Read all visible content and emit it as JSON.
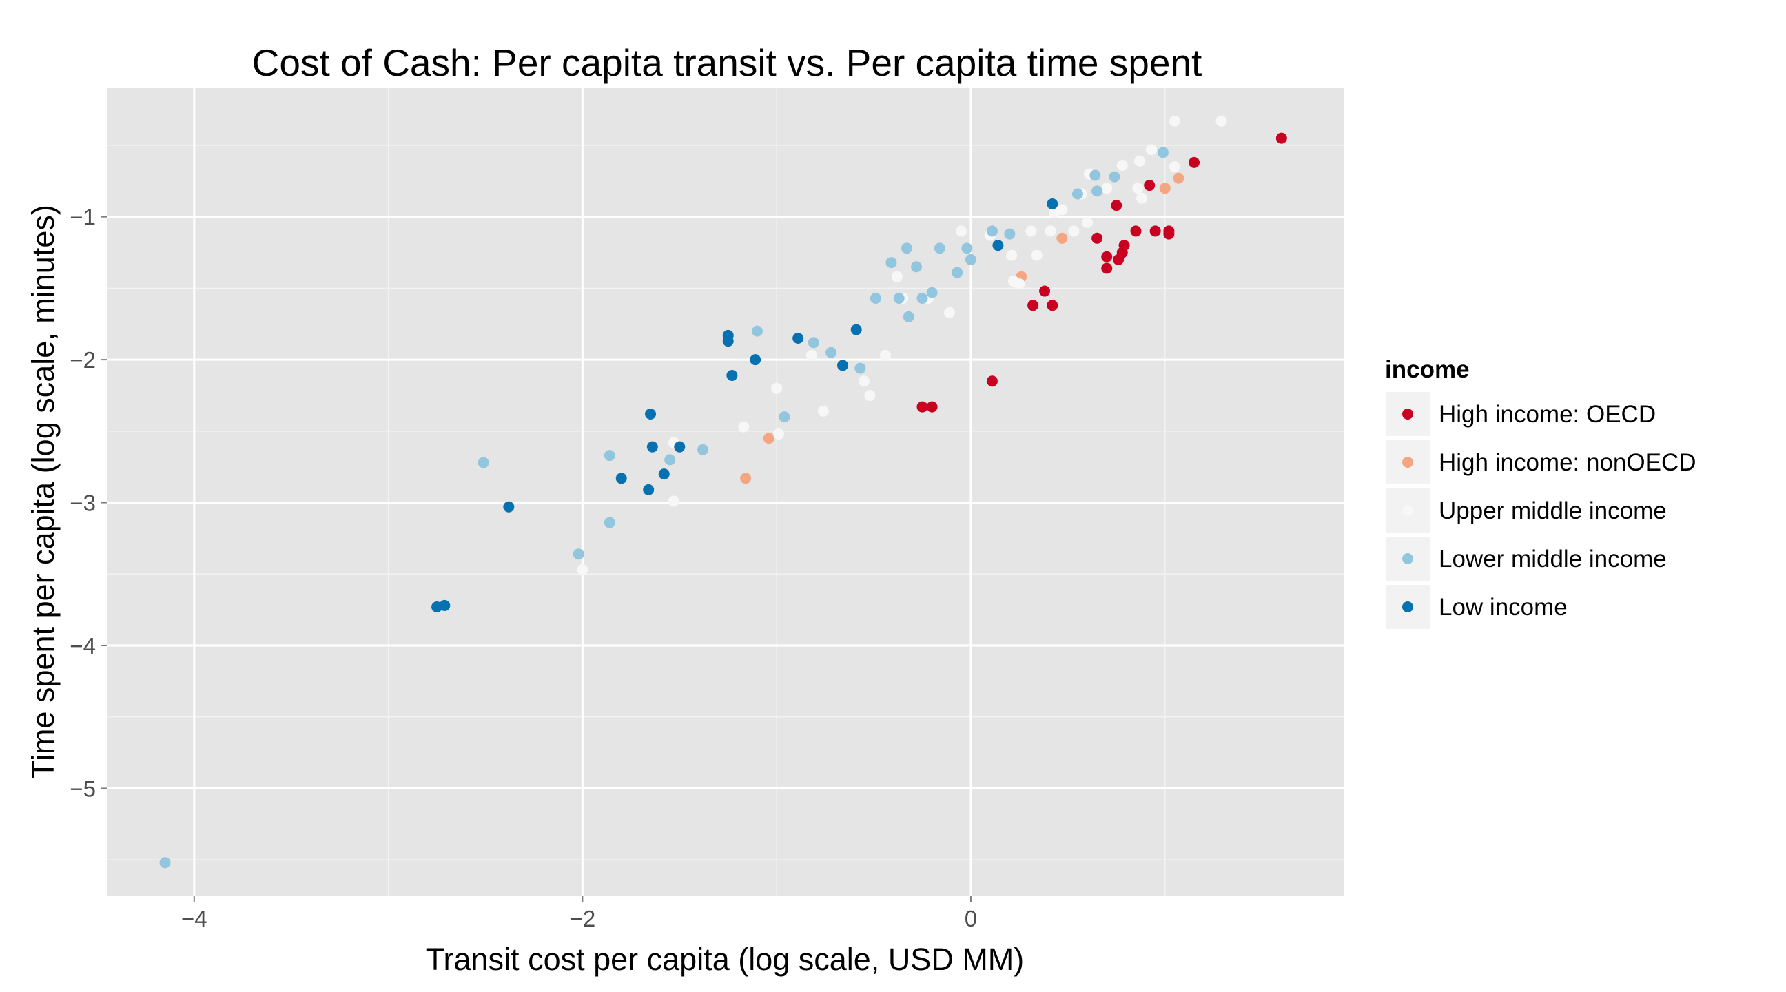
{
  "chart_data": {
    "type": "scatter",
    "title": "Cost of Cash: Per capita transit vs. Per capita time spent",
    "xlabel": "Transit cost per capita (log scale, USD MM)",
    "ylabel": "Time spent per capita (log scale, minutes)",
    "xlim": [
      -4.45,
      1.92
    ],
    "ylim": [
      -5.75,
      -0.1
    ],
    "x_ticks": [
      -4,
      -2,
      0
    ],
    "y_ticks": [
      -5,
      -4,
      -3,
      -2,
      -1
    ],
    "grid": true,
    "legend": {
      "title": "income",
      "placement": "right",
      "entries": [
        {
          "name": "High income: OECD",
          "color": "#ca0020"
        },
        {
          "name": "High income: nonOECD",
          "color": "#f4a582"
        },
        {
          "name": "Upper middle income",
          "color": "#f7f7f7"
        },
        {
          "name": "Lower middle income",
          "color": "#92c5de"
        },
        {
          "name": "Low income",
          "color": "#0571b0"
        }
      ]
    },
    "series": [
      {
        "name": "High income: OECD",
        "color": "#ca0020",
        "points": [
          [
            1.6,
            -0.45
          ],
          [
            1.15,
            -0.62
          ],
          [
            0.92,
            -0.78
          ],
          [
            0.75,
            -0.92
          ],
          [
            1.02,
            -1.1
          ],
          [
            1.02,
            -1.12
          ],
          [
            0.95,
            -1.1
          ],
          [
            0.85,
            -1.1
          ],
          [
            0.65,
            -1.15
          ],
          [
            0.79,
            -1.2
          ],
          [
            0.7,
            -1.28
          ],
          [
            0.78,
            -1.25
          ],
          [
            0.76,
            -1.3
          ],
          [
            0.7,
            -1.36
          ],
          [
            0.38,
            -1.52
          ],
          [
            0.32,
            -1.62
          ],
          [
            0.42,
            -1.62
          ],
          [
            0.11,
            -2.15
          ],
          [
            -0.25,
            -2.33
          ],
          [
            -0.2,
            -2.33
          ]
        ]
      },
      {
        "name": "High income: nonOECD",
        "color": "#f4a582",
        "points": [
          [
            1.07,
            -0.73
          ],
          [
            1.0,
            -0.8
          ],
          [
            0.47,
            -1.15
          ],
          [
            0.26,
            -1.42
          ],
          [
            -1.04,
            -2.55
          ],
          [
            -1.16,
            -2.83
          ]
        ]
      },
      {
        "name": "Upper middle income",
        "color": "#f7f7f7",
        "points": [
          [
            1.29,
            -0.33
          ],
          [
            1.05,
            -0.33
          ],
          [
            1.05,
            -0.65
          ],
          [
            0.93,
            -0.53
          ],
          [
            0.87,
            -0.61
          ],
          [
            0.78,
            -0.64
          ],
          [
            0.61,
            -0.7
          ],
          [
            0.57,
            -0.84
          ],
          [
            0.47,
            -0.95
          ],
          [
            0.43,
            -0.97
          ],
          [
            0.88,
            -0.87
          ],
          [
            0.86,
            -0.8
          ],
          [
            0.7,
            -0.8
          ],
          [
            0.6,
            -1.04
          ],
          [
            0.53,
            -1.1
          ],
          [
            0.41,
            -1.1
          ],
          [
            0.31,
            -1.1
          ],
          [
            0.34,
            -1.27
          ],
          [
            0.21,
            -1.27
          ],
          [
            0.22,
            -1.45
          ],
          [
            0.25,
            -1.47
          ],
          [
            -0.05,
            -1.1
          ],
          [
            0.1,
            -1.13
          ],
          [
            -0.38,
            -1.42
          ],
          [
            -0.35,
            -1.57
          ],
          [
            -0.22,
            -1.57
          ],
          [
            -0.11,
            -1.67
          ],
          [
            -0.44,
            -1.97
          ],
          [
            -0.55,
            -2.15
          ],
          [
            -0.52,
            -2.25
          ],
          [
            -0.82,
            -1.97
          ],
          [
            -0.76,
            -2.36
          ],
          [
            -1.0,
            -2.2
          ],
          [
            -0.99,
            -2.52
          ],
          [
            -1.17,
            -2.47
          ],
          [
            -1.53,
            -2.58
          ],
          [
            -1.53,
            -2.99
          ],
          [
            -2.0,
            -3.47
          ]
        ]
      },
      {
        "name": "Lower middle income",
        "color": "#92c5de",
        "points": [
          [
            0.99,
            -0.55
          ],
          [
            0.74,
            -0.72
          ],
          [
            0.65,
            -0.82
          ],
          [
            0.55,
            -0.84
          ],
          [
            0.64,
            -0.71
          ],
          [
            0.2,
            -1.12
          ],
          [
            0.11,
            -1.1
          ],
          [
            -0.33,
            -1.22
          ],
          [
            -0.16,
            -1.22
          ],
          [
            -0.02,
            -1.22
          ],
          [
            0.0,
            -1.3
          ],
          [
            -0.07,
            -1.39
          ],
          [
            -0.41,
            -1.32
          ],
          [
            -0.28,
            -1.35
          ],
          [
            -0.49,
            -1.57
          ],
          [
            -0.37,
            -1.57
          ],
          [
            -0.25,
            -1.57
          ],
          [
            -0.2,
            -1.53
          ],
          [
            -0.32,
            -1.7
          ],
          [
            -1.1,
            -1.8
          ],
          [
            -0.81,
            -1.88
          ],
          [
            -0.72,
            -1.95
          ],
          [
            -0.57,
            -2.06
          ],
          [
            -0.96,
            -2.4
          ],
          [
            -1.38,
            -2.63
          ],
          [
            -1.55,
            -2.7
          ],
          [
            -1.86,
            -2.67
          ],
          [
            -2.51,
            -2.72
          ],
          [
            -1.86,
            -3.14
          ],
          [
            -2.02,
            -3.36
          ],
          [
            -4.15,
            -5.52
          ]
        ]
      },
      {
        "name": "Low income",
        "color": "#0571b0",
        "points": [
          [
            0.42,
            -0.91
          ],
          [
            0.14,
            -1.2
          ],
          [
            -0.59,
            -1.79
          ],
          [
            -0.89,
            -1.85
          ],
          [
            -0.66,
            -2.04
          ],
          [
            -1.25,
            -1.83
          ],
          [
            -1.25,
            -1.87
          ],
          [
            -1.23,
            -2.11
          ],
          [
            -1.11,
            -2.0
          ],
          [
            -1.65,
            -2.38
          ],
          [
            -1.64,
            -2.61
          ],
          [
            -1.5,
            -2.61
          ],
          [
            -1.58,
            -2.8
          ],
          [
            -1.66,
            -2.91
          ],
          [
            -1.8,
            -2.83
          ],
          [
            -2.38,
            -3.03
          ],
          [
            -2.75,
            -3.73
          ],
          [
            -2.71,
            -3.72
          ]
        ]
      }
    ]
  }
}
